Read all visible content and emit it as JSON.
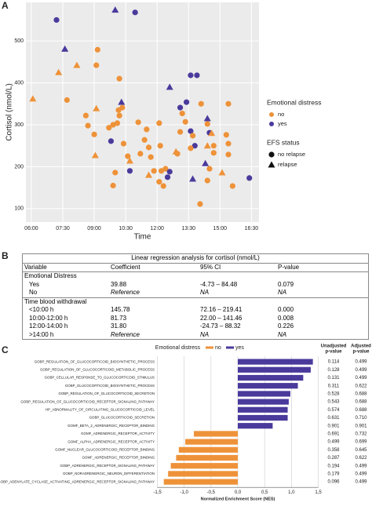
{
  "panel_labels": [
    "A",
    "B",
    "C"
  ],
  "chart_data": [
    {
      "type": "scatter",
      "x_label": "Time",
      "y_label": "Cortisol (nmol/L)",
      "xlim": [
        5.74,
        16.86
      ],
      "ylim": [
        68,
        592
      ],
      "xticks": [
        {
          "value": 6,
          "label": "06:00"
        },
        {
          "value": 7.5,
          "label": "07:30"
        },
        {
          "value": 9,
          "label": "09:00"
        },
        {
          "value": 10.5,
          "label": "10:30"
        },
        {
          "value": 12,
          "label": "12:00"
        },
        {
          "value": 13.5,
          "label": "13:30"
        },
        {
          "value": 15,
          "label": "15:00"
        },
        {
          "value": 16.5,
          "label": "16:30"
        }
      ],
      "yticks": [
        100,
        200,
        300,
        400,
        500
      ],
      "grid": true,
      "color_legend": {
        "title": "Emotional distress",
        "items": [
          {
            "name": "no",
            "color": "#ee9239"
          },
          {
            "name": "yes",
            "color": "#4a3a9c"
          }
        ]
      },
      "shape_legend": {
        "title": "EFS status",
        "items": [
          {
            "name": "no relapse",
            "marker": "circle"
          },
          {
            "name": "relapse",
            "marker": "triangle"
          }
        ]
      },
      "x": [
        7.2,
        10.0,
        10.95,
        7.6,
        8.17,
        7.3,
        9.1,
        9.16,
        10.2,
        6.07,
        7.7,
        9.1,
        10.3,
        10.2,
        10.16,
        10.34,
        10.1,
        8.6,
        8.7,
        9.0,
        9.7,
        9.9,
        9.8,
        10.4,
        9.05,
        10.6,
        10.7,
        11.1,
        11.5,
        11.4,
        11.6,
        11.7,
        11.2,
        10.7,
        10.0,
        12.1,
        12.15,
        12.2,
        11.85,
        12.4,
        12.1,
        12.3,
        12.5,
        12.6,
        11.6,
        12.97,
        12.9,
        13.1,
        13.35,
        13.6,
        13.7,
        13.8,
        13.6,
        13.2,
        13.1,
        12.6,
        13.4,
        13.6,
        13.9,
        14.1,
        14.4,
        14.4,
        14.5,
        14.6,
        14.4,
        14.7,
        14.7,
        14.3,
        13.7,
        14.4,
        14.5,
        15.1,
        15.3,
        15.4,
        15.4,
        14.05,
        15.6,
        16.4,
        15.4,
        9.9
      ],
      "y": [
        550,
        574,
        568,
        481,
        442,
        425,
        442,
        479,
        410,
        362,
        359,
        339,
        354,
        322,
        335,
        341,
        304,
        322,
        298,
        277,
        293,
        300,
        261,
        255,
        227,
        225,
        214,
        306,
        289,
        264,
        246,
        223,
        231,
        190,
        186,
        304,
        250,
        190,
        190,
        195,
        164,
        154,
        175,
        188,
        180,
        231,
        236,
        283,
        307,
        285,
        274,
        250,
        244,
        327,
        341,
        390,
        354,
        418,
        418,
        350,
        315,
        302,
        281,
        280,
        250,
        250,
        233,
        208,
        171,
        167,
        195,
        186,
        276,
        350,
        255,
        111,
        154,
        173,
        229,
        155
      ],
      "distress": [
        "yes",
        "yes",
        "yes",
        "yes",
        "no",
        "no",
        "no",
        "no",
        "no",
        "no",
        "no",
        "no",
        "yes",
        "no",
        "no",
        "no",
        "no",
        "no",
        "no",
        "no",
        "no",
        "no",
        "yes",
        "no",
        "no",
        "no",
        "no",
        "no",
        "no",
        "no",
        "no",
        "no",
        "no",
        "yes",
        "no",
        "no",
        "no",
        "no",
        "no",
        "no",
        "no",
        "no",
        "yes",
        "yes",
        "no",
        "no",
        "no",
        "no",
        "no",
        "yes",
        "no",
        "yes",
        "no",
        "no",
        "yes",
        "yes",
        "yes",
        "yes",
        "yes",
        "no",
        "yes",
        "no",
        "yes",
        "no",
        "no",
        "no",
        "no",
        "yes",
        "yes",
        "no",
        "no",
        "no",
        "no",
        "no",
        "no",
        "no",
        "no",
        "yes",
        "no",
        "no"
      ],
      "status": [
        "no relapse",
        "relapse",
        "no relapse",
        "relapse",
        "relapse",
        "relapse",
        "no relapse",
        "no relapse",
        "no relapse",
        "relapse",
        "no relapse",
        "relapse",
        "relapse",
        "no relapse",
        "no relapse",
        "no relapse",
        "no relapse",
        "no relapse",
        "no relapse",
        "no relapse",
        "no relapse",
        "no relapse",
        "no relapse",
        "no relapse",
        "relapse",
        "no relapse",
        "relapse",
        "no relapse",
        "no relapse",
        "no relapse",
        "no relapse",
        "no relapse",
        "no relapse",
        "no relapse",
        "no relapse",
        "no relapse",
        "no relapse",
        "no relapse",
        "no relapse",
        "no relapse",
        "no relapse",
        "no relapse",
        "no relapse",
        "no relapse",
        "relapse",
        "no relapse",
        "relapse",
        "no relapse",
        "no relapse",
        "no relapse",
        "no relapse",
        "no relapse",
        "no relapse",
        "no relapse",
        "no relapse",
        "relapse",
        "no relapse",
        "no relapse",
        "no relapse",
        "no relapse",
        "relapse",
        "no relapse",
        "no relapse",
        "relapse",
        "relapse",
        "no relapse",
        "no relapse",
        "relapse",
        "relapse",
        "no relapse",
        "no relapse",
        "relapse",
        "no relapse",
        "no relapse",
        "no relapse",
        "no relapse",
        "no relapse",
        "no relapse",
        "no relapse",
        "no relapse"
      ]
    },
    {
      "type": "hbar",
      "x_label": "Normalized Enrichment Score (NES)",
      "legend_title": "Emotional distress",
      "series": [
        {
          "name": "no",
          "color": "#ee9239"
        },
        {
          "name": "yes",
          "color": "#4a3a9c"
        }
      ],
      "xlim": [
        -1.5,
        1.5
      ],
      "xticks": [
        {
          "value": -1.5,
          "label": "-1,5"
        },
        {
          "value": -1,
          "label": "-1,0"
        },
        {
          "value": -0.5,
          "label": "-0,5"
        },
        {
          "value": 0,
          "label": "0,0"
        },
        {
          "value": 0.5,
          "label": "0,5"
        },
        {
          "value": 1,
          "label": "1,0"
        },
        {
          "value": 1.5,
          "label": "1,5"
        }
      ],
      "categories": [
        "GOBP_REGULATION_OF_GLUCOCORTICOID_BIOSYNTHETIC_PROCESS",
        "GOBP_REGULATION_OF_GLUCOCORTICOID_METABOLIC_PROCESS",
        "GOBP_CELLULAR_RESPONSE_TO_GLUCOCORTICOID_STIMULUS",
        "GOBP_GLUCOCORTICOID_BIOSYNTHETIC_PROCESS",
        "GOBP_REGULATION_OF_GLUCOCORTICOID_SECRETION",
        "GOBP_REGULATION_OF_GLUCOCORTICOID_RECEPTOR_SIGNALING_PATHWAY",
        "HP_ABNORMALITY_OF_CIRCULATING_GLUCOCORTICOID_LEVEL",
        "GOBP_GLUCOCORTICOID_SECRETION",
        "GOMF_BETA_2_ADRENERGIC_RECEPTOR_BINDING",
        "GOMF_ADRENERGIC_RECEPTOR_ACTIVITY",
        "GOMF_ALPHA_ADRENERGIC_RECEPTOR_ACTIVITY",
        "GOMF_NUCLEAR_GLUCOCORTICOID_RECEPTOR_BINDING",
        "GOMF_ADRENERGIC_RECEPTOR_BINDING",
        "GOBP_ADRENERGIC_RECEPTOR_SIGNALING_PATHWAY",
        "GOBP_NORADRENERGIC_NEURON_DIFFERENTIATION",
        "GOBP_ADENYLATE_CYCLASE_ACTIVATING_ADRENERGIC_RECEPTOR_SIGNALING_PATHWAY"
      ],
      "values": [
        1.4,
        1.36,
        1.22,
        1.12,
        0.98,
        0.95,
        0.93,
        0.93,
        0.65,
        -0.82,
        -0.98,
        -1.1,
        -1.15,
        -1.25,
        -1.3,
        -1.38
      ],
      "group": [
        "yes",
        "yes",
        "yes",
        "yes",
        "yes",
        "yes",
        "yes",
        "yes",
        "yes",
        "no",
        "no",
        "no",
        "no",
        "no",
        "no",
        "no"
      ],
      "unadjusted_header": [
        "Unadjusted",
        "p-value"
      ],
      "adjusted_header": [
        "Adjusted",
        "p-value"
      ],
      "unadjusted_p": [
        "0.114",
        "0.128",
        "0.131",
        "0.311",
        "0.528",
        "0.543",
        "0.574",
        "0.631",
        "0.901",
        "0.691",
        "0.499",
        "0.358",
        "0.287",
        "0.194",
        "0.179",
        "0.096"
      ],
      "adjusted_p": [
        "0.499",
        "0.499",
        "0.499",
        "0.622",
        "0.688",
        "0.688",
        "0.688",
        "0.710",
        "0.901",
        "0.732",
        "0.699",
        "0.645",
        "0.622",
        "0.499",
        "0.499",
        "0.499"
      ]
    }
  ],
  "table": {
    "title": "Linear regression analysis for cortisol (nmol/L)",
    "header": [
      "Variable",
      "Coefficient",
      "95% CI",
      "P-value"
    ],
    "sections": [
      {
        "title": "Emotional Distress",
        "rows": [
          [
            "Yes",
            "39.88",
            "-4.73 – 84.48",
            "0.079"
          ],
          [
            "No",
            "Reference",
            "NA",
            "NA"
          ]
        ]
      },
      {
        "title": "Time blood withdrawal",
        "rows": [
          [
            "<10:00 h",
            "145.78",
            "72.16 – 219.41",
            "0.000"
          ],
          [
            "10:00-12:00 h",
            "81.73",
            "22.00 – 141.46",
            "0.008"
          ],
          [
            "12:00-14:00 h",
            "31.80",
            "-24.73 – 88.32",
            "0.226"
          ],
          [
            ">14:00 h",
            "Reference",
            "NA",
            "NA"
          ]
        ]
      }
    ]
  }
}
